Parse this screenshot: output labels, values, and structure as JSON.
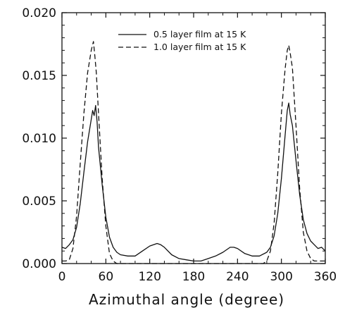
{
  "chart_data": {
    "type": "line",
    "title": "",
    "xlabel": "Azimuthal angle (degree)",
    "ylabel": "",
    "xlim": [
      0,
      360
    ],
    "ylim": [
      0.0,
      0.02
    ],
    "x_ticks": [
      0,
      60,
      120,
      180,
      240,
      300,
      360
    ],
    "x_tick_labels": [
      "0",
      "60",
      "120",
      "180",
      "240",
      "300",
      "360"
    ],
    "y_ticks": [
      0.0,
      0.005,
      0.01,
      0.015,
      0.02
    ],
    "y_tick_labels": [
      "0.000",
      "0.005",
      "0.010",
      "0.015",
      "0.020"
    ],
    "grid": false,
    "legend_position": "top-center",
    "series": [
      {
        "name": "0.5 layer film at 15 K",
        "style": "solid",
        "x": [
          0,
          5,
          10,
          15,
          20,
          25,
          30,
          35,
          40,
          42,
          44,
          46,
          48,
          50,
          55,
          60,
          65,
          70,
          75,
          80,
          90,
          100,
          110,
          120,
          130,
          135,
          140,
          150,
          160,
          170,
          180,
          190,
          200,
          210,
          220,
          230,
          235,
          240,
          250,
          260,
          270,
          280,
          285,
          290,
          295,
          300,
          305,
          308,
          310,
          312,
          315,
          320,
          325,
          330,
          335,
          340,
          345,
          350,
          355,
          360
        ],
        "y": [
          0.0013,
          0.0012,
          0.0015,
          0.0019,
          0.0029,
          0.0048,
          0.0073,
          0.0097,
          0.0115,
          0.0122,
          0.0118,
          0.0126,
          0.0113,
          0.0093,
          0.0063,
          0.0037,
          0.0021,
          0.0013,
          0.0009,
          0.0007,
          0.0006,
          0.0006,
          0.001,
          0.0014,
          0.0016,
          0.0015,
          0.0013,
          0.0007,
          0.0004,
          0.0003,
          0.0002,
          0.0002,
          0.0004,
          0.0006,
          0.0009,
          0.0013,
          0.0013,
          0.0012,
          0.0008,
          0.0006,
          0.0006,
          0.0009,
          0.0013,
          0.0022,
          0.004,
          0.0068,
          0.0102,
          0.0122,
          0.0128,
          0.0119,
          0.011,
          0.0082,
          0.0055,
          0.0035,
          0.0024,
          0.0018,
          0.0015,
          0.0012,
          0.0013,
          0.001
        ]
      },
      {
        "name": "1.0 layer film at 15 K",
        "style": "dashed",
        "x": [
          0,
          5,
          10,
          15,
          20,
          25,
          30,
          35,
          40,
          43,
          45,
          47,
          50,
          55,
          60,
          65,
          70,
          75,
          80,
          90,
          100,
          120,
          140,
          160,
          180,
          200,
          220,
          240,
          260,
          270,
          275,
          280,
          285,
          290,
          295,
          300,
          305,
          308,
          310,
          312,
          315,
          320,
          325,
          330,
          335,
          340,
          345,
          350,
          355,
          360
        ],
        "y": [
          0.0002,
          0.0002,
          0.0003,
          0.0012,
          0.0038,
          0.008,
          0.012,
          0.0152,
          0.017,
          0.0177,
          0.0165,
          0.0152,
          0.012,
          0.0068,
          0.003,
          0.0008,
          0.0002,
          0.0,
          0.0,
          0.0,
          0.0,
          0.0,
          0.0,
          0.0,
          0.0,
          0.0,
          0.0,
          0.0,
          0.0,
          0.0,
          0.0,
          0.0002,
          0.001,
          0.0032,
          0.0072,
          0.012,
          0.0155,
          0.017,
          0.0174,
          0.0168,
          0.0156,
          0.011,
          0.006,
          0.0025,
          0.001,
          0.0004,
          0.0002,
          0.0002,
          0.0002,
          0.0002
        ]
      }
    ]
  }
}
